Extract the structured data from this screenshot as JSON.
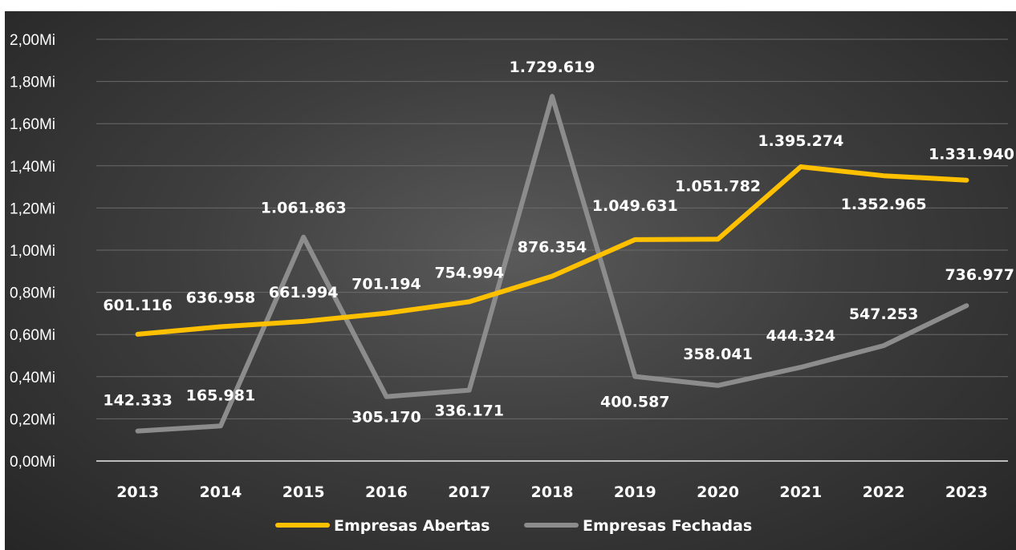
{
  "chart_data": {
    "type": "line",
    "categories": [
      "2013",
      "2014",
      "2015",
      "2016",
      "2017",
      "2018",
      "2019",
      "2020",
      "2021",
      "2022",
      "2023"
    ],
    "ylim": [
      0,
      2000000
    ],
    "yticks": [
      0,
      200000,
      400000,
      600000,
      800000,
      1000000,
      1200000,
      1400000,
      1600000,
      1800000,
      2000000
    ],
    "ytick_labels": [
      "0,00Mi",
      "0,20Mi",
      "0,40Mi",
      "0,60Mi",
      "0,80Mi",
      "1,00Mi",
      "1,20Mi",
      "1,40Mi",
      "1,60Mi",
      "1,80Mi",
      "2,00Mi"
    ],
    "grid": true,
    "legend_position": "bottom",
    "series": [
      {
        "name": "Empresas Abertas",
        "color": "#ffc000",
        "values": [
          601116,
          636958,
          661994,
          701194,
          754994,
          876354,
          1049631,
          1051782,
          1395274,
          1352965,
          1331940
        ],
        "labels": [
          "601.116",
          "636.958",
          "661.994",
          "701.194",
          "754.994",
          "876.354",
          "1.049.631",
          "1.051.782",
          "1.395.274",
          "1.352.965",
          "1.331.940"
        ]
      },
      {
        "name": "Empresas Fechadas",
        "color": "#8c8c8c",
        "values": [
          142333,
          165981,
          1061863,
          305170,
          336171,
          1729619,
          400587,
          358041,
          444324,
          547253,
          736977
        ],
        "labels": [
          "142.333",
          "165.981",
          "1.061.863",
          "305.170",
          "336.171",
          "1.729.619",
          "400.587",
          "358.041",
          "444.324",
          "547.253",
          "736.977"
        ]
      }
    ]
  }
}
